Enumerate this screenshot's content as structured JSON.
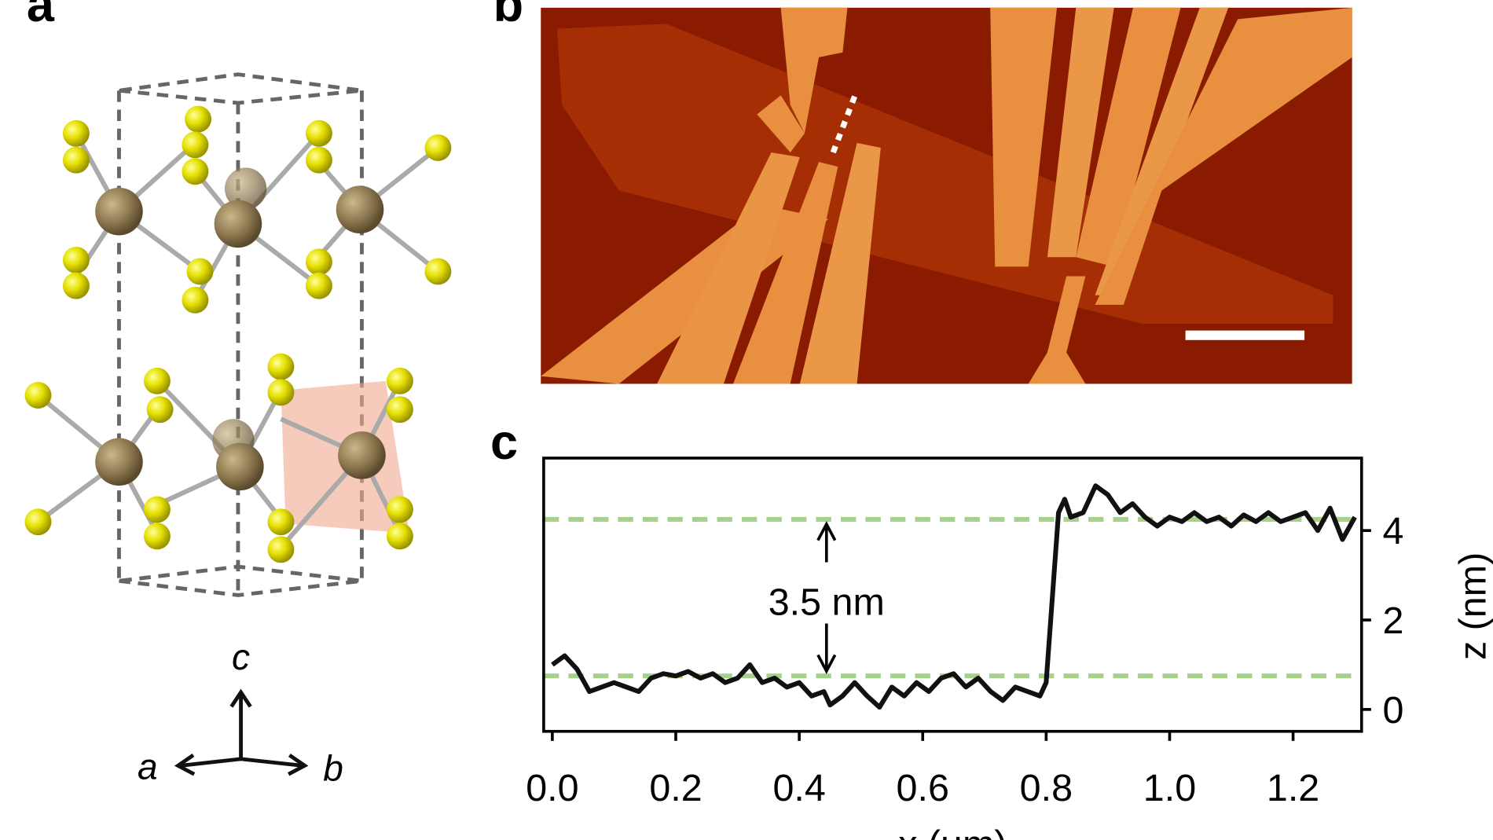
{
  "panels": {
    "a": {
      "label": "a",
      "axes": {
        "up": "c",
        "left": "a",
        "right": "b"
      }
    },
    "b": {
      "label": "b"
    },
    "c": {
      "label": "c"
    }
  },
  "chart_data": {
    "type": "line",
    "x_label": "x (μm)",
    "y_label": "z (nm)",
    "annotation": "3.5 nm",
    "reference_lines": [
      0.75,
      4.25
    ],
    "reference_color": "#a8d08d",
    "color": "#111111",
    "xlim": [
      -0.014,
      1.311
    ],
    "ylim": [
      -0.49,
      5.62
    ],
    "xticks": [
      {
        "value": 0,
        "label": "0.0"
      },
      0.2,
      0.4,
      0.6,
      0.8,
      {
        "value": 1,
        "label": "1.0"
      },
      1.2
    ],
    "yticks": [
      0,
      2,
      4
    ],
    "x": [
      0.0,
      0.02,
      0.04,
      0.06,
      0.08,
      0.1,
      0.12,
      0.14,
      0.16,
      0.18,
      0.2,
      0.22,
      0.24,
      0.26,
      0.28,
      0.3,
      0.32,
      0.34,
      0.36,
      0.38,
      0.4,
      0.42,
      0.44,
      0.45,
      0.47,
      0.49,
      0.51,
      0.53,
      0.55,
      0.57,
      0.59,
      0.61,
      0.63,
      0.65,
      0.67,
      0.69,
      0.71,
      0.73,
      0.75,
      0.77,
      0.79,
      0.8,
      0.81,
      0.82,
      0.83,
      0.84,
      0.86,
      0.88,
      0.9,
      0.92,
      0.94,
      0.96,
      0.98,
      1.0,
      1.02,
      1.04,
      1.06,
      1.08,
      1.1,
      1.12,
      1.14,
      1.16,
      1.18,
      1.2,
      1.22,
      1.24,
      1.26,
      1.28,
      1.3
    ],
    "values": [
      1.0,
      1.2,
      0.9,
      0.4,
      0.5,
      0.6,
      0.5,
      0.4,
      0.7,
      0.8,
      0.75,
      0.85,
      0.7,
      0.8,
      0.6,
      0.7,
      1.0,
      0.6,
      0.7,
      0.5,
      0.6,
      0.3,
      0.4,
      0.1,
      0.3,
      0.6,
      0.3,
      0.05,
      0.5,
      0.3,
      0.6,
      0.4,
      0.7,
      0.8,
      0.5,
      0.7,
      0.4,
      0.2,
      0.5,
      0.4,
      0.3,
      0.6,
      2.5,
      4.4,
      4.7,
      4.3,
      4.4,
      5.0,
      4.8,
      4.4,
      4.6,
      4.3,
      4.1,
      4.3,
      4.2,
      4.4,
      4.2,
      4.3,
      4.1,
      4.35,
      4.2,
      4.4,
      4.2,
      4.3,
      4.4,
      4.0,
      4.5,
      3.8,
      4.3
    ]
  }
}
